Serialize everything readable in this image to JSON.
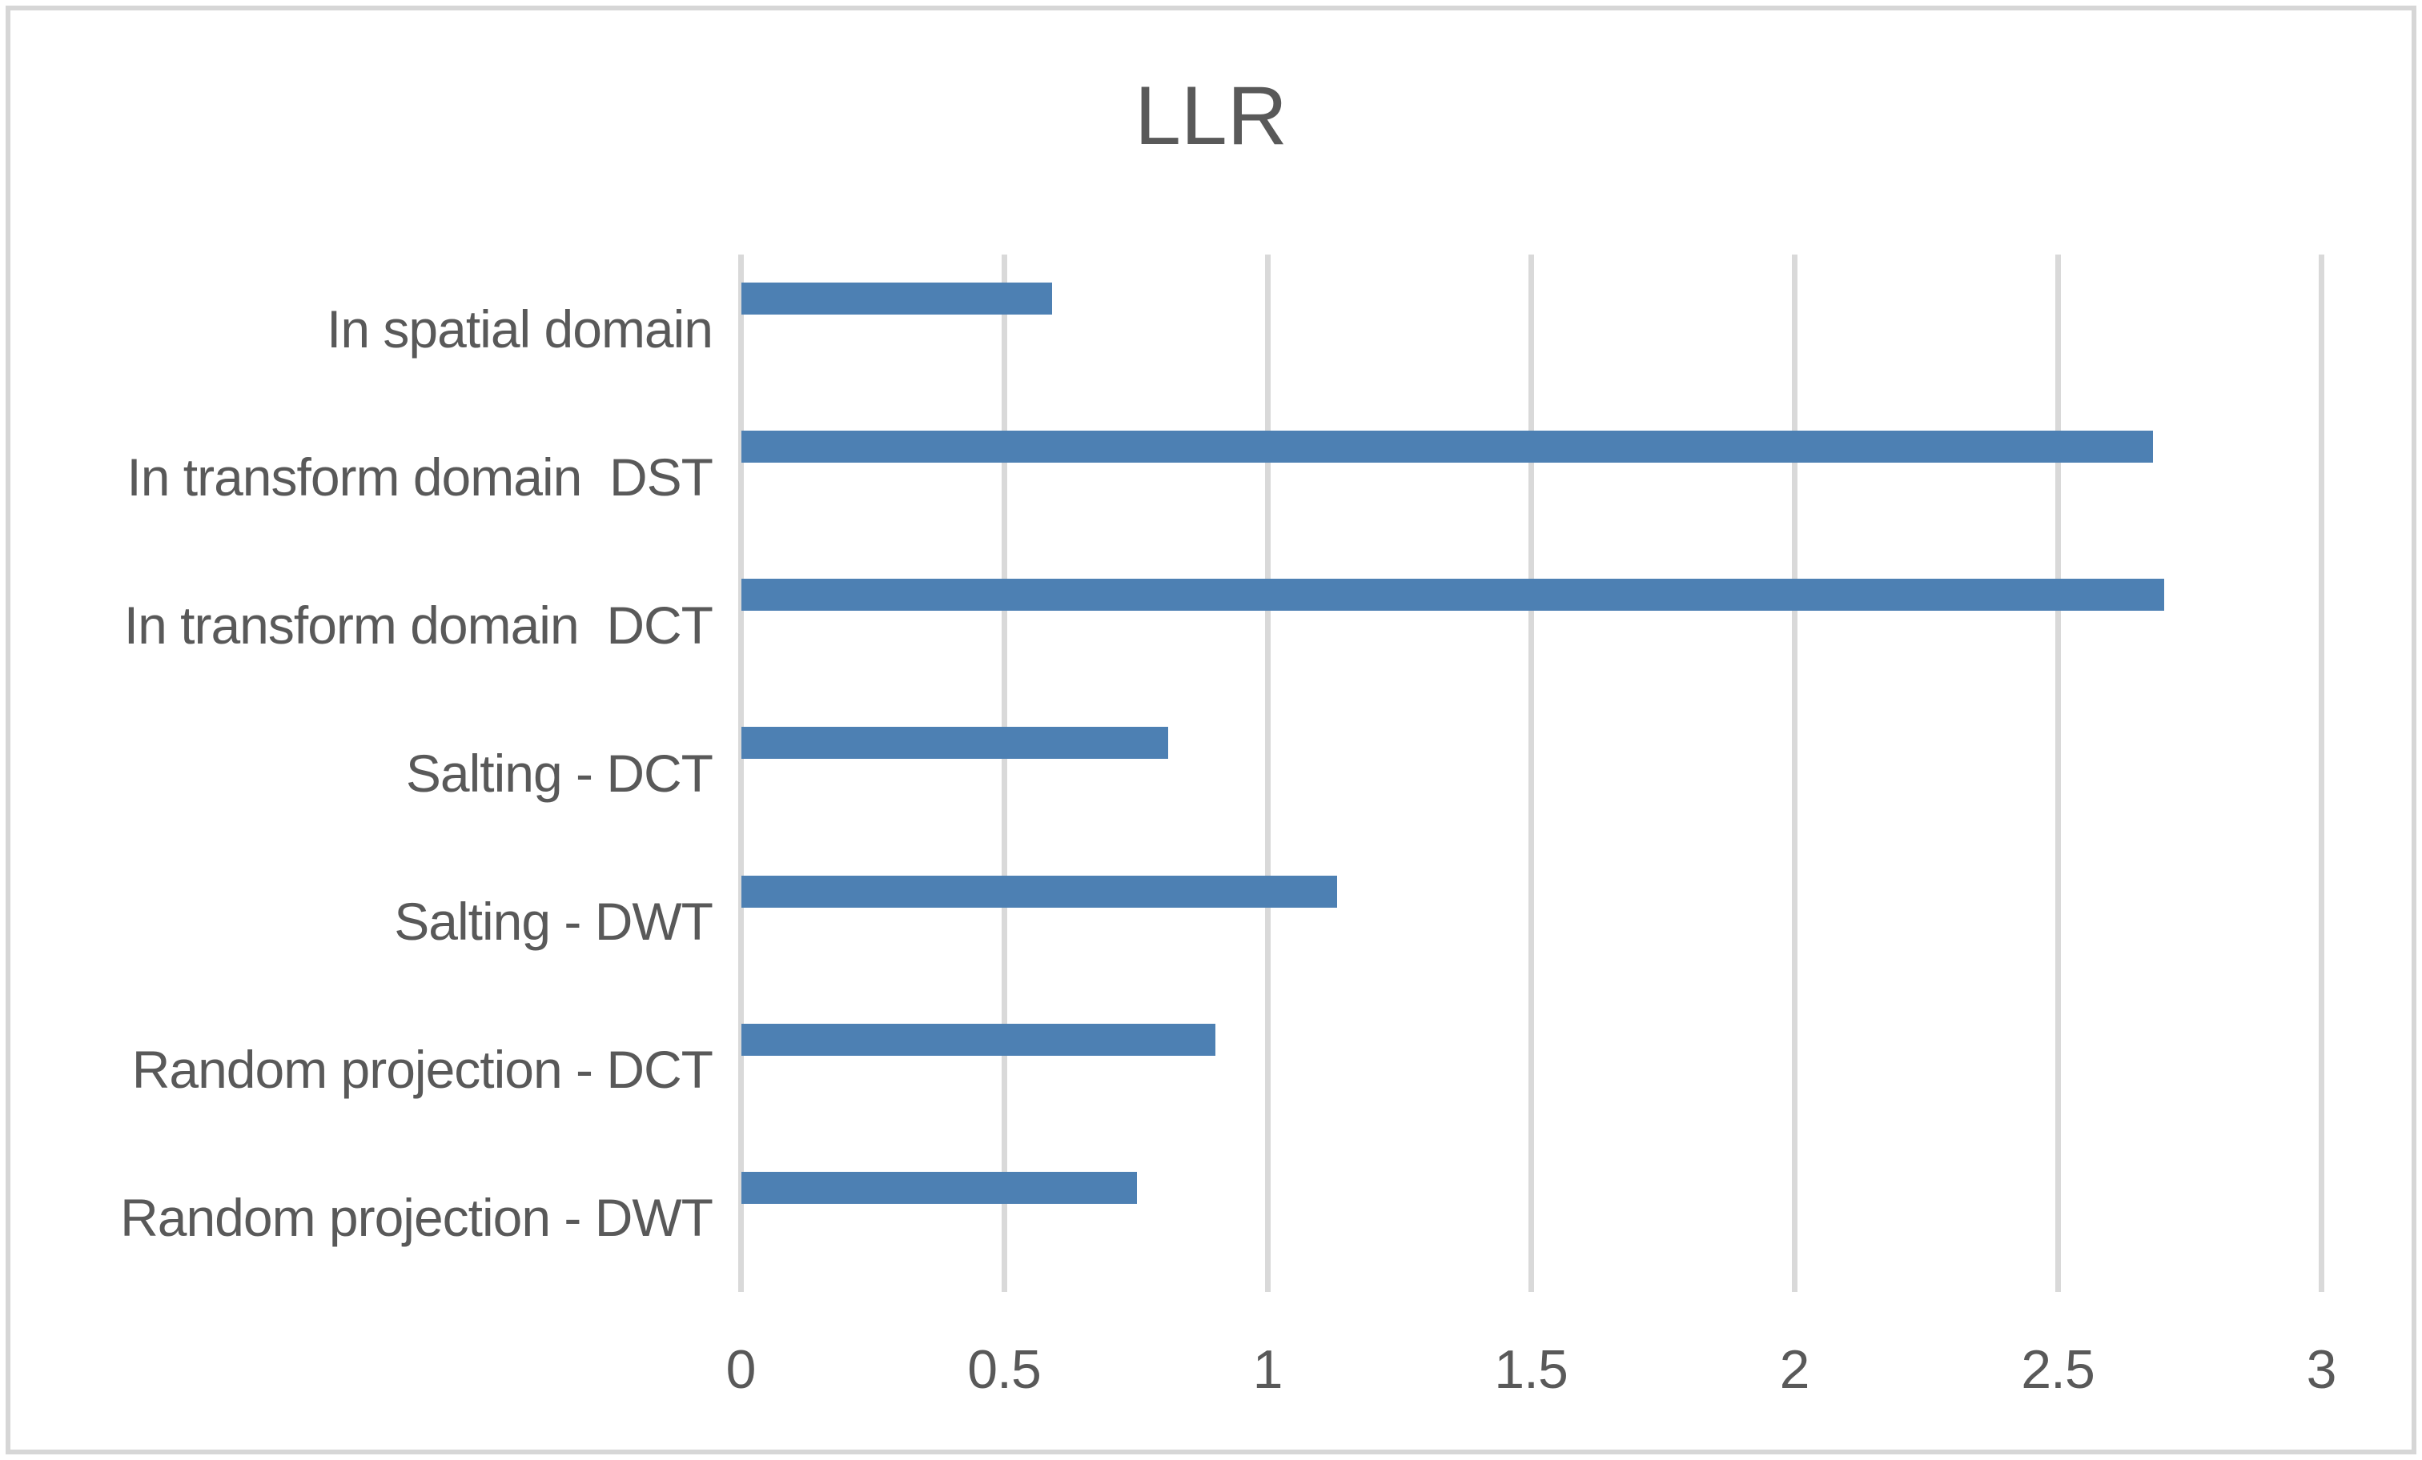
{
  "chart_data": {
    "type": "bar",
    "orientation": "horizontal",
    "title": "LLR",
    "categories": [
      "In spatial domain",
      "In transform domain  DST",
      "In transform domain  DCT",
      "Salting - DCT",
      "Salting - DWT",
      "Random projection - DCT",
      "Random projection - DWT"
    ],
    "values": [
      0.59,
      2.68,
      2.7,
      0.81,
      1.13,
      0.9,
      0.75
    ],
    "xlabel": "",
    "ylabel": "",
    "xlim": [
      0,
      3
    ],
    "xticks": [
      0,
      0.5,
      1,
      1.5,
      2,
      2.5,
      3
    ],
    "xtick_labels": [
      "0",
      "0.5",
      "1",
      "1.5",
      "2",
      "2.5",
      "3"
    ],
    "grid": "vertical-only",
    "legend_position": "none",
    "colors": {
      "bar": "#4D80B3",
      "gridline": "#D9D9D9",
      "text": "#595959",
      "frame_border": "#D6D6D6",
      "background": "#FFFFFF"
    }
  }
}
